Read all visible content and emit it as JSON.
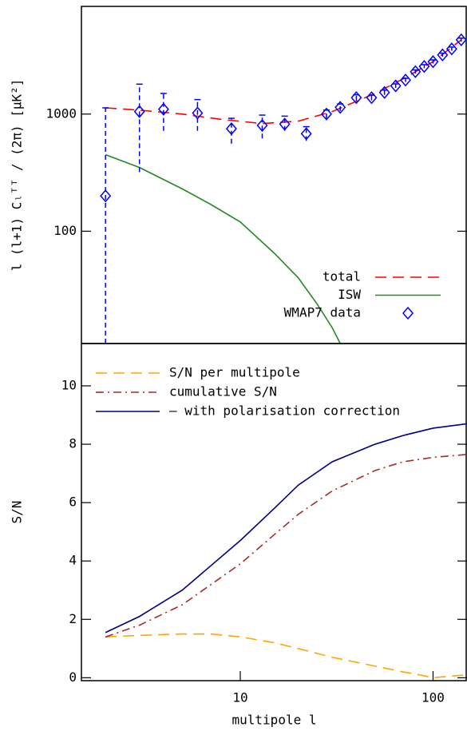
{
  "chart_data": [
    {
      "type": "line",
      "ylabel": "l (l+1) Cₗᵀᵀ / (2π)   [μK²]",
      "xlim": [
        1.5,
        150
      ],
      "xlog": true,
      "ylim": [
        11,
        8300
      ],
      "ylog": true,
      "yticks": [
        100,
        1000
      ],
      "legend": "lower right",
      "series": [
        {
          "name": "total",
          "color": "#ff0000",
          "line_style": "dashed",
          "x": [
            2,
            3,
            5,
            8,
            13,
            20,
            30,
            50,
            70,
            100,
            140
          ],
          "values": [
            1130,
            1080,
            1000,
            900,
            830,
            870,
            1050,
            1500,
            2000,
            2800,
            4300
          ]
        },
        {
          "name": "ISW",
          "color": "#228b22",
          "line_style": "solid",
          "x": [
            2,
            3,
            5,
            7,
            10,
            15,
            20,
            25,
            30,
            33
          ],
          "values": [
            450,
            350,
            230,
            170,
            120,
            65,
            40,
            24,
            15,
            11
          ]
        },
        {
          "name": "WMAP7 data",
          "color": "#0000ff",
          "marker": "diamond",
          "x": [
            2,
            3,
            4,
            6,
            9,
            13,
            17,
            22,
            28,
            33,
            40,
            48,
            56,
            64,
            72,
            81,
            90,
            100,
            112,
            125,
            140
          ],
          "values": [
            200,
            1050,
            1100,
            1020,
            750,
            800,
            820,
            680,
            1000,
            1140,
            1380,
            1380,
            1530,
            1740,
            1950,
            2300,
            2550,
            2800,
            3200,
            3600,
            4300
          ],
          "error_low": [
            11,
            320,
            720,
            720,
            560,
            620,
            720,
            590,
            920,
            1060,
            1300,
            1310,
            1460,
            1670,
            1880,
            2220,
            2460,
            2700,
            3090,
            3470,
            4150
          ],
          "error_high": [
            1130,
            1800,
            1500,
            1330,
            920,
            980,
            960,
            780,
            1080,
            1220,
            1460,
            1450,
            1600,
            1810,
            2020,
            2380,
            2640,
            2900,
            3310,
            3730,
            4450
          ]
        }
      ]
    },
    {
      "type": "line",
      "xlabel": "multipole l",
      "ylabel": "S/N",
      "xlim": [
        1.5,
        150
      ],
      "xlog": true,
      "xticks": [
        10,
        100
      ],
      "ylim": [
        -0.1,
        11.45
      ],
      "yticks": [
        0,
        2,
        4,
        6,
        8,
        10
      ],
      "legend": "upper left",
      "series": [
        {
          "name": "S/N per multipole",
          "color": "#ffa500",
          "line_style": "dashed",
          "x": [
            2,
            3,
            5,
            7,
            10,
            15,
            20,
            30,
            50,
            70,
            85,
            100,
            120,
            150
          ],
          "values": [
            1.4,
            1.45,
            1.5,
            1.5,
            1.4,
            1.2,
            1.0,
            0.7,
            0.4,
            0.2,
            0.1,
            0,
            0.05,
            0.1
          ]
        },
        {
          "name": "cumulative S/N",
          "color": "#a52a2a",
          "line_style": "dashdot",
          "x": [
            2,
            3,
            5,
            10,
            15,
            20,
            30,
            50,
            70,
            100,
            150
          ],
          "values": [
            1.4,
            1.8,
            2.5,
            3.9,
            4.9,
            5.6,
            6.4,
            7.1,
            7.4,
            7.55,
            7.65
          ]
        },
        {
          "name": "– with polarisation correction",
          "color": "#000080",
          "line_style": "solid",
          "x": [
            2,
            3,
            5,
            10,
            15,
            20,
            30,
            50,
            70,
            100,
            150
          ],
          "values": [
            1.55,
            2.1,
            3.0,
            4.7,
            5.8,
            6.6,
            7.4,
            8.0,
            8.3,
            8.55,
            8.7
          ]
        }
      ]
    }
  ]
}
